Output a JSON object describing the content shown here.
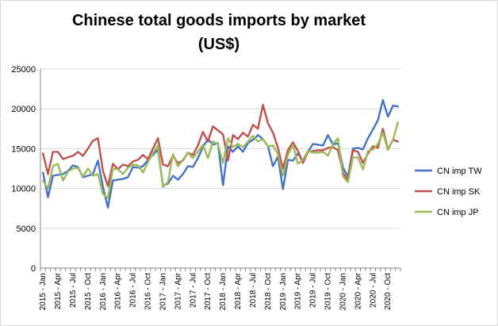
{
  "chart_data": {
    "type": "line",
    "title": "Chinese total goods imports by market\n(US$)",
    "xlabel": "",
    "ylabel": "",
    "ylim": [
      0,
      25000
    ],
    "yticks": [
      0,
      5000,
      10000,
      15000,
      20000,
      25000
    ],
    "ytick_labels": [
      "0",
      "5000",
      "10000",
      "15000",
      "20000",
      "25000"
    ],
    "grid": true,
    "legend_position": "right",
    "x": [
      "2015 - Jan",
      "2015 - Feb",
      "2015 - Mar",
      "2015 - Apr",
      "2015 - May",
      "2015 - Jun",
      "2015 - Jul",
      "2015 - Aug",
      "2015 - Sep",
      "2015 - Oct",
      "2015 - Nov",
      "2015 - Dec",
      "2016 - Jan",
      "2016 - Feb",
      "2016 - Mar",
      "2016 - Apr",
      "2016 - May",
      "2016 - Jun",
      "2016 - Jul",
      "2016 - Aug",
      "2016 - Sep",
      "2016 - Oct",
      "2016 - Nov",
      "2016 - Dec",
      "2017 - Jan",
      "2017 - Feb",
      "2017 - Mar",
      "2017 - Apr",
      "2017 - May",
      "2017 - Jun",
      "2017 - Jul",
      "2017 - Aug",
      "2017 - Sep",
      "2017 - Oct",
      "2017 - Nov",
      "2017 - Dec",
      "2018 - Jan",
      "2018 - Feb",
      "2018 - Mar",
      "2018 - Apr",
      "2018 - May",
      "2018 - Jun",
      "2018 - Jul",
      "2018 - Aug",
      "2018 - Sep",
      "2018 - Oct",
      "2018 - Nov",
      "2018 - Dec",
      "2019 - Jan",
      "2019 - Feb",
      "2019 - Mar",
      "2019 - Apr",
      "2019 - May",
      "2019 - Jun",
      "2019 - Jul",
      "2019 - Aug",
      "2019 - Sep",
      "2019 - Oct",
      "2019 - Nov",
      "2019 - Dec",
      "2020 - Jan",
      "2020 - Feb",
      "2020 - Mar",
      "2020 - Apr",
      "2020 - May",
      "2020 - Jun",
      "2020 - Jul",
      "2020 - Aug",
      "2020 - Sep",
      "2020 - Oct",
      "2020 - Nov",
      "2020 - Dec"
    ],
    "x_tick_labels": [
      "2015 - Jan",
      "2015 - Apr",
      "2015 - Jul",
      "2015 - Oct",
      "2016 - Jan",
      "2016 - Apr",
      "2016 - Jul",
      "2016 - Oct",
      "2017 - Jan",
      "2017 - Apr",
      "2017 - Jul",
      "2017 - Oct",
      "2018 - Jan",
      "2018 - Apr",
      "2018 - Jul",
      "2018 - Oct",
      "2019 - Jan",
      "2019 - Apr",
      "2019 - Jul",
      "2019 - Oct",
      "2020 - Jan",
      "2020 - Apr",
      "2020 - Jul",
      "2020 - Oct"
    ],
    "series": [
      {
        "name": "CN  imp TW",
        "color": "#4472c4",
        "values": [
          12000,
          8900,
          11600,
          11700,
          11800,
          12200,
          12900,
          12700,
          11400,
          11600,
          11800,
          13500,
          10200,
          7600,
          11000,
          11100,
          11200,
          11400,
          12700,
          12600,
          12800,
          13600,
          14200,
          14900,
          10400,
          10600,
          11600,
          11100,
          11800,
          12800,
          12700,
          13800,
          15200,
          16200,
          15500,
          15700,
          10400,
          15300,
          14600,
          15300,
          14600,
          15700,
          16100,
          16700,
          16200,
          15300,
          12800,
          14000,
          9900,
          13600,
          13500,
          14400,
          13400,
          14600,
          15600,
          15500,
          15400,
          16700,
          15500,
          15700,
          12600,
          11500,
          15000,
          15100,
          14900,
          16300,
          17400,
          18600,
          21100,
          19000,
          20400,
          20300
        ]
      },
      {
        "name": "CN  imp SK",
        "color": "#c0504d",
        "values": [
          14400,
          11800,
          14600,
          14600,
          13700,
          13900,
          14100,
          14600,
          14100,
          15000,
          16000,
          16300,
          12200,
          10300,
          13100,
          12400,
          13000,
          12800,
          13400,
          13600,
          14200,
          13700,
          15000,
          16300,
          13000,
          12800,
          14100,
          13200,
          13500,
          14500,
          14200,
          15400,
          17100,
          15900,
          17800,
          17300,
          16800,
          13500,
          16700,
          16200,
          17000,
          16500,
          18000,
          17500,
          20500,
          18200,
          17000,
          15100,
          12500,
          14800,
          15800,
          14700,
          13200,
          14600,
          14700,
          14800,
          14800,
          15100,
          15200,
          14800,
          12000,
          11000,
          14800,
          14600,
          13200,
          14400,
          15300,
          15100,
          17500,
          14900,
          16100,
          15900
        ]
      },
      {
        "name": "CN  imp JP",
        "color": "#9bbb59",
        "values": [
          11000,
          10000,
          12800,
          13100,
          11000,
          12100,
          12500,
          12600,
          11500,
          12500,
          11600,
          11800,
          9300,
          8800,
          12500,
          12400,
          11800,
          12600,
          13000,
          12900,
          12000,
          13300,
          14400,
          15400,
          10200,
          10800,
          14300,
          12800,
          13600,
          14500,
          13800,
          14600,
          15500,
          13800,
          15900,
          15600,
          13200,
          16300,
          15200,
          15600,
          15200,
          15900,
          16600,
          15900,
          16200,
          15300,
          15400,
          14300,
          11600,
          14200,
          15500,
          13100,
          13600,
          14700,
          14500,
          14500,
          14600,
          14100,
          15600,
          16300,
          11500,
          10800,
          13900,
          13900,
          12400,
          14700,
          14900,
          15600,
          17000,
          14800,
          16100,
          18300
        ]
      }
    ]
  }
}
